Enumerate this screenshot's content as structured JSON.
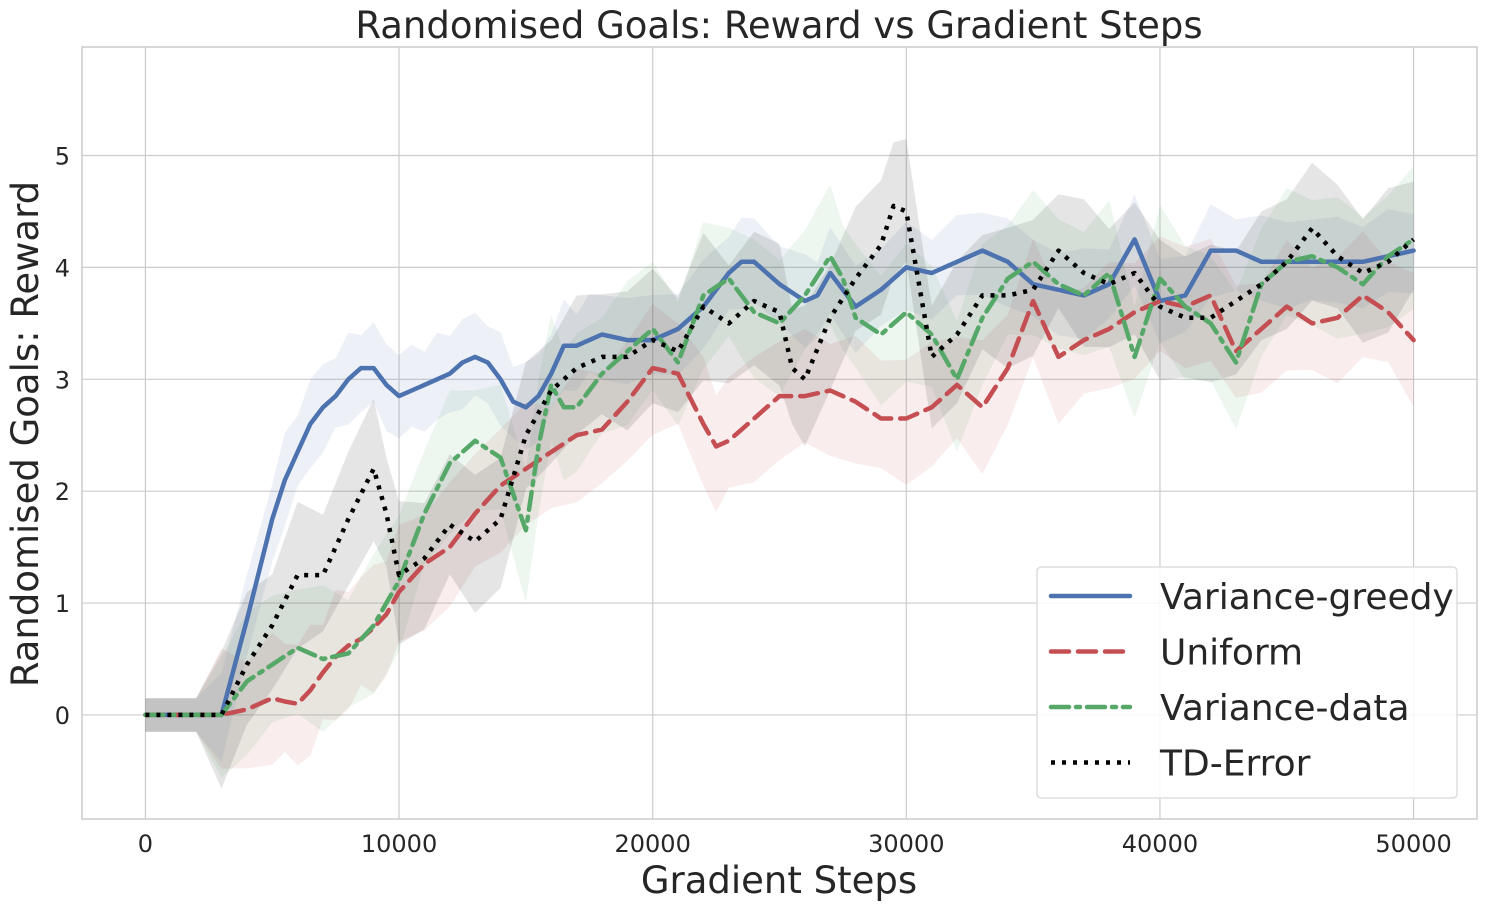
{
  "chart_data": {
    "type": "line",
    "title": "Randomised Goals: Reward vs Gradient Steps",
    "xlabel": "Gradient Steps",
    "ylabel": "Randomised Goals: Reward",
    "xlim": [
      -2500,
      52500
    ],
    "ylim": [
      -0.93,
      5.97
    ],
    "xticks": [
      0,
      10000,
      20000,
      30000,
      40000,
      50000
    ],
    "yticks": [
      0,
      1,
      2,
      3,
      4,
      5
    ],
    "grid": true,
    "legend_position": "lower-right",
    "series": [
      {
        "name": "Variance-greedy",
        "color": "#4c72b0",
        "dash": "solid",
        "x": [
          0,
          1000,
          2000,
          3000,
          4000,
          5000,
          5500,
          6000,
          6500,
          7000,
          7500,
          8000,
          8500,
          9000,
          9500,
          10000,
          10500,
          11000,
          11500,
          12000,
          12500,
          13000,
          13500,
          14000,
          14500,
          15000,
          15500,
          16000,
          16500,
          17000,
          17500,
          18000,
          19000,
          20000,
          21000,
          22000,
          23000,
          23500,
          24000,
          25000,
          26000,
          26500,
          27000,
          28000,
          29000,
          30000,
          31000,
          32000,
          33000,
          34000,
          35000,
          36000,
          37000,
          38000,
          39000,
          40000,
          41000,
          42000,
          43000,
          44000,
          45000,
          46000,
          47000,
          48000,
          49000,
          50000
        ],
        "y": [
          0,
          0,
          0,
          0,
          0.85,
          1.75,
          2.1,
          2.35,
          2.6,
          2.75,
          2.85,
          3.0,
          3.1,
          3.1,
          2.95,
          2.85,
          2.9,
          2.95,
          3.0,
          3.05,
          3.15,
          3.2,
          3.15,
          3.0,
          2.8,
          2.75,
          2.85,
          3.05,
          3.3,
          3.3,
          3.35,
          3.4,
          3.35,
          3.35,
          3.45,
          3.65,
          3.95,
          4.05,
          4.05,
          3.85,
          3.7,
          3.75,
          3.95,
          3.65,
          3.8,
          4.0,
          3.95,
          4.05,
          4.15,
          4.05,
          3.85,
          3.8,
          3.75,
          3.85,
          4.25,
          3.7,
          3.75,
          4.15,
          4.15,
          4.05,
          4.05,
          4.05,
          4.05,
          4.05,
          4.1,
          4.15
        ]
      },
      {
        "name": "Uniform",
        "color": "#c44e52",
        "dash": "dashed",
        "x": [
          0,
          1000,
          2000,
          3000,
          4000,
          5000,
          5500,
          6000,
          6500,
          7000,
          7500,
          8000,
          8500,
          9000,
          9500,
          10000,
          11000,
          12000,
          13000,
          14000,
          15000,
          16000,
          17000,
          18000,
          19000,
          20000,
          21000,
          22000,
          22500,
          23000,
          24000,
          25000,
          26000,
          27000,
          28000,
          29000,
          30000,
          31000,
          32000,
          33000,
          34000,
          35000,
          36000,
          37000,
          38000,
          39000,
          40000,
          41000,
          42000,
          43000,
          44000,
          45000,
          46000,
          47000,
          48000,
          49000,
          50000
        ],
        "y": [
          0,
          0,
          0,
          0,
          0.05,
          0.15,
          0.12,
          0.1,
          0.22,
          0.38,
          0.52,
          0.62,
          0.68,
          0.78,
          0.9,
          1.1,
          1.35,
          1.5,
          1.8,
          2.05,
          2.2,
          2.35,
          2.5,
          2.55,
          2.8,
          3.1,
          3.05,
          2.6,
          2.4,
          2.45,
          2.65,
          2.85,
          2.85,
          2.9,
          2.8,
          2.65,
          2.65,
          2.75,
          2.95,
          2.75,
          3.1,
          3.7,
          3.2,
          3.35,
          3.45,
          3.6,
          3.7,
          3.65,
          3.75,
          3.25,
          3.45,
          3.65,
          3.5,
          3.55,
          3.75,
          3.6,
          3.35
        ]
      },
      {
        "name": "Variance-data",
        "color": "#55a868",
        "dash": "dashdot",
        "x": [
          0,
          1000,
          2000,
          3000,
          4000,
          5000,
          6000,
          7000,
          8000,
          9000,
          10000,
          11000,
          12000,
          13000,
          14000,
          15000,
          15500,
          16000,
          16500,
          17000,
          18000,
          19000,
          20000,
          21000,
          22000,
          23000,
          24000,
          25000,
          26000,
          27000,
          27500,
          28000,
          29000,
          30000,
          31000,
          32000,
          33000,
          34000,
          35000,
          36000,
          37000,
          38000,
          39000,
          40000,
          41000,
          42000,
          43000,
          44000,
          45000,
          46000,
          47000,
          48000,
          49000,
          50000
        ],
        "y": [
          0,
          0,
          0,
          0,
          0.3,
          0.45,
          0.6,
          0.5,
          0.55,
          0.8,
          1.2,
          1.8,
          2.25,
          2.45,
          2.3,
          1.65,
          2.4,
          2.95,
          2.75,
          2.75,
          3.05,
          3.25,
          3.45,
          3.15,
          3.75,
          3.9,
          3.6,
          3.5,
          3.75,
          4.1,
          3.9,
          3.55,
          3.4,
          3.6,
          3.4,
          3.0,
          3.55,
          3.9,
          4.05,
          3.85,
          3.75,
          3.95,
          3.2,
          3.9,
          3.65,
          3.5,
          3.15,
          3.85,
          4.05,
          4.1,
          4.0,
          3.85,
          4.1,
          4.25
        ]
      },
      {
        "name": "TD-Error",
        "color": "#000000",
        "dash": "dotted",
        "x": [
          0,
          1000,
          2000,
          3000,
          4000,
          5000,
          6000,
          7000,
          8000,
          9000,
          9500,
          10000,
          11000,
          12000,
          13000,
          14000,
          15000,
          16000,
          17000,
          18000,
          19000,
          20000,
          21000,
          22000,
          23000,
          24000,
          25000,
          25500,
          26000,
          27000,
          28000,
          29000,
          29500,
          30000,
          31000,
          32000,
          33000,
          34000,
          35000,
          36000,
          37000,
          38000,
          39000,
          40000,
          41000,
          42000,
          43000,
          44000,
          45000,
          46000,
          47000,
          48000,
          49000,
          50000
        ],
        "y": [
          0,
          0,
          0,
          0,
          0.45,
          0.8,
          1.25,
          1.25,
          1.75,
          2.2,
          1.8,
          1.25,
          1.4,
          1.7,
          1.55,
          1.75,
          2.5,
          2.9,
          3.1,
          3.2,
          3.2,
          3.35,
          3.25,
          3.65,
          3.5,
          3.7,
          3.6,
          3.1,
          3.0,
          3.55,
          3.9,
          4.2,
          4.55,
          4.5,
          3.2,
          3.4,
          3.75,
          3.75,
          3.8,
          4.15,
          3.95,
          3.85,
          3.95,
          3.65,
          3.55,
          3.55,
          3.7,
          3.85,
          4.05,
          4.35,
          4.1,
          3.95,
          4.05,
          4.25
        ]
      }
    ]
  }
}
